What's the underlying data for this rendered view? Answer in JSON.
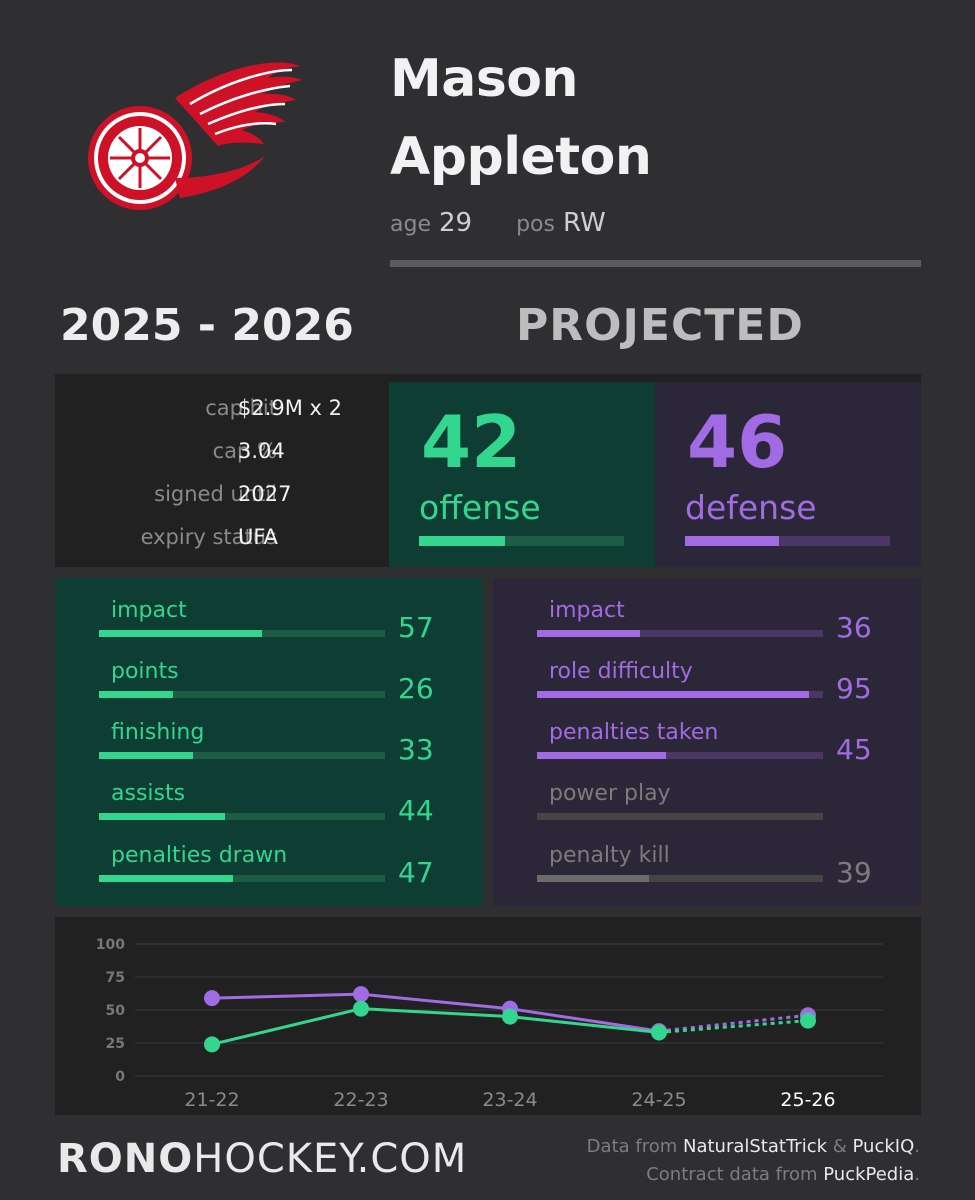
{
  "player": {
    "first_name": "Mason",
    "last_name": "Appleton",
    "age_label": "age",
    "age": "29",
    "pos_label": "pos",
    "pos": "RW"
  },
  "season": "2025 - 2026",
  "projected_label": "PROJECTED",
  "contract": [
    {
      "label": "cap hit",
      "value": "$2.9M x 2"
    },
    {
      "label": "cap %",
      "value": "3.04"
    },
    {
      "label": "signed until",
      "value": "2027"
    },
    {
      "label": "expiry status",
      "value": "UFA"
    }
  ],
  "summary": {
    "offense": {
      "value": "42",
      "label": "offense",
      "percent": 42
    },
    "defense": {
      "value": "46",
      "label": "defense",
      "percent": 46
    }
  },
  "offense_stats": [
    {
      "label": "impact",
      "value": "57",
      "percent": 57
    },
    {
      "label": "points",
      "value": "26",
      "percent": 26
    },
    {
      "label": "finishing",
      "value": "33",
      "percent": 33
    },
    {
      "label": "assists",
      "value": "44",
      "percent": 44
    },
    {
      "label": "penalties drawn",
      "value": "47",
      "percent": 47
    }
  ],
  "defense_stats": [
    {
      "label": "impact",
      "value": "36",
      "percent": 36,
      "muted": false
    },
    {
      "label": "role difficulty",
      "value": "95",
      "percent": 95,
      "muted": false
    },
    {
      "label": "penalties taken",
      "value": "45",
      "percent": 45,
      "muted": false
    },
    {
      "label": "power play",
      "value": "",
      "percent": 0,
      "muted": true
    },
    {
      "label": "penalty kill",
      "value": "39",
      "percent": 39,
      "muted": true
    }
  ],
  "colors": {
    "offense": "#33d68f",
    "offense_track": "#1d5c45",
    "defense": "#a06be3",
    "defense_track": "#4a3766",
    "muted": "#6c6c6c",
    "muted_track": "#454545",
    "muted_text": "#7b7b7b"
  },
  "chart_data": {
    "type": "line",
    "categories": [
      "21-22",
      "22-23",
      "23-24",
      "24-25",
      "25-26"
    ],
    "highlight_category": "25-26",
    "series": [
      {
        "name": "",
        "color": "#a06be3",
        "values": [
          59,
          62,
          51,
          34,
          46
        ],
        "projected_from_index": 3
      },
      {
        "name": "",
        "color": "#33d68f",
        "values": [
          24,
          51,
          45,
          33,
          42
        ],
        "projected_from_index": 3
      }
    ],
    "ylim": [
      0,
      100
    ],
    "yticks": [
      "0",
      "25",
      "50",
      "75",
      "100"
    ],
    "grid": true,
    "title": "",
    "xlabel": "",
    "ylabel": ""
  },
  "footer": {
    "brand_bold": "RONO",
    "brand_rest": "HOCKEY.COM",
    "data_prefix": "Data from ",
    "data_source1": "NaturalStatTrick",
    "data_amp": " & ",
    "data_source2": "PuckIQ",
    "data_end": ".",
    "contract_prefix": "Contract data from ",
    "contract_source": "PuckPedia",
    "contract_end": "."
  }
}
